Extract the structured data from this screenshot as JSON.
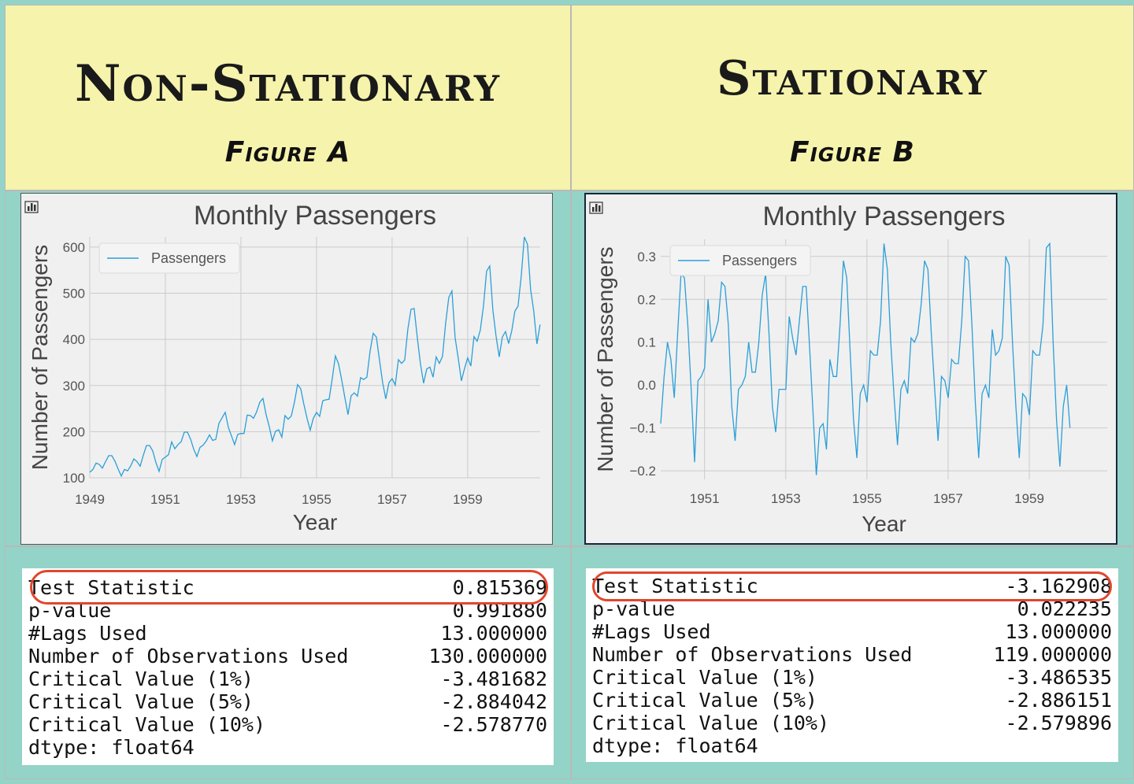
{
  "panels": [
    {
      "heading": "Non-Stationary",
      "subheading": "Figure A",
      "stats": [
        {
          "label": "Test Statistic",
          "value": "0.815369"
        },
        {
          "label": "p-value",
          "value": "0.991880"
        },
        {
          "label": "#Lags Used",
          "value": "13.000000"
        },
        {
          "label": "Number of Observations Used",
          "value": "130.000000"
        },
        {
          "label": "Critical Value (1%)",
          "value": "-3.481682"
        },
        {
          "label": "Critical Value (5%)",
          "value": "-2.884042"
        },
        {
          "label": "Critical Value (10%)",
          "value": "-2.578770"
        },
        {
          "label": "dtype: float64",
          "value": ""
        }
      ]
    },
    {
      "heading": "Stationary",
      "subheading": "Figure B",
      "stats": [
        {
          "label": "Test Statistic",
          "value": "-3.162908"
        },
        {
          "label": "p-value",
          "value": "0.022235"
        },
        {
          "label": "#Lags Used",
          "value": "13.000000"
        },
        {
          "label": "Number of Observations Used",
          "value": "119.000000"
        },
        {
          "label": "Critical Value (1%)",
          "value": "-3.486535"
        },
        {
          "label": "Critical Value (5%)",
          "value": "-2.886151"
        },
        {
          "label": "Critical Value (10%)",
          "value": "-2.579896"
        },
        {
          "label": "dtype: float64",
          "value": ""
        }
      ]
    }
  ],
  "chart_data": [
    {
      "type": "line",
      "title": "Monthly Passengers",
      "xlabel": "Year",
      "ylabel": "Number of Passengers",
      "legend": "top-left",
      "grid": true,
      "line_color": "#2a9fd8",
      "xlim": [
        1949,
        1960.92
      ],
      "ylim": [
        100,
        622
      ],
      "xticks": [
        1949,
        1951,
        1953,
        1955,
        1957,
        1959
      ],
      "yticks": [
        100,
        200,
        300,
        400,
        500,
        600
      ],
      "series": [
        {
          "name": "Passengers",
          "start": 1949,
          "values": [
            112,
            118,
            132,
            129,
            121,
            135,
            148,
            148,
            136,
            119,
            104,
            118,
            115,
            126,
            141,
            135,
            125,
            149,
            170,
            170,
            158,
            133,
            114,
            140,
            145,
            150,
            178,
            163,
            172,
            178,
            199,
            199,
            184,
            162,
            146,
            166,
            171,
            180,
            193,
            181,
            183,
            218,
            230,
            242,
            209,
            191,
            172,
            194,
            196,
            196,
            236,
            235,
            229,
            243,
            264,
            272,
            237,
            211,
            180,
            201,
            204,
            188,
            235,
            227,
            234,
            264,
            302,
            293,
            259,
            229,
            203,
            229,
            242,
            233,
            267,
            269,
            270,
            315,
            364,
            347,
            312,
            274,
            237,
            278,
            284,
            277,
            317,
            313,
            318,
            374,
            413,
            405,
            355,
            306,
            271,
            306,
            315,
            301,
            356,
            348,
            355,
            422,
            465,
            467,
            404,
            347,
            305,
            336,
            340,
            318,
            362,
            348,
            363,
            435,
            491,
            505,
            404,
            359,
            310,
            337,
            360,
            342,
            406,
            396,
            420,
            472,
            548,
            559,
            463,
            407,
            362,
            405,
            417,
            391,
            419,
            461,
            472,
            535,
            622,
            606,
            508,
            461,
            390,
            432
          ]
        }
      ]
    },
    {
      "type": "line",
      "title": "Monthly Passengers",
      "xlabel": "Year",
      "ylabel": "Number of Passengers",
      "legend": "top-left",
      "grid": true,
      "line_color": "#2a9fd8",
      "xlim": [
        1949.92,
        1960.92
      ],
      "ylim": [
        -0.22,
        0.34
      ],
      "xticks": [
        1951,
        1953,
        1955,
        1957,
        1959
      ],
      "yticks": [
        -0.2,
        -0.1,
        0.0,
        0.1,
        0.2,
        0.3
      ],
      "series": [
        {
          "name": "Passengers",
          "start": 1949.92,
          "values": [
            -0.09,
            0.02,
            0.1,
            0.06,
            -0.03,
            0.12,
            0.26,
            0.25,
            0.14,
            -0.01,
            -0.18,
            0.01,
            0.02,
            0.04,
            0.2,
            0.1,
            0.12,
            0.15,
            0.24,
            0.23,
            0.14,
            -0.05,
            -0.13,
            -0.01,
            0.0,
            0.02,
            0.1,
            0.03,
            0.03,
            0.1,
            0.21,
            0.26,
            0.12,
            -0.05,
            -0.11,
            -0.01,
            -0.01,
            -0.01,
            0.16,
            0.11,
            0.07,
            0.15,
            0.23,
            0.23,
            0.09,
            -0.06,
            -0.21,
            -0.1,
            -0.09,
            -0.15,
            0.06,
            0.02,
            0.02,
            0.14,
            0.29,
            0.25,
            0.08,
            -0.08,
            -0.17,
            -0.02,
            0.0,
            -0.04,
            0.08,
            0.07,
            0.07,
            0.15,
            0.33,
            0.27,
            0.1,
            -0.03,
            -0.14,
            -0.01,
            0.01,
            -0.02,
            0.11,
            0.1,
            0.12,
            0.19,
            0.29,
            0.27,
            0.12,
            -0.01,
            -0.13,
            0.02,
            0.01,
            -0.03,
            0.06,
            0.05,
            0.05,
            0.15,
            0.3,
            0.29,
            0.14,
            -0.04,
            -0.17,
            -0.02,
            0.0,
            -0.03,
            0.13,
            0.07,
            0.08,
            0.11,
            0.3,
            0.28,
            0.1,
            -0.05,
            -0.17,
            -0.02,
            -0.03,
            -0.07,
            0.08,
            0.07,
            0.07,
            0.14,
            0.32,
            0.33,
            0.1,
            -0.08,
            -0.19,
            -0.05,
            0.0,
            -0.1
          ]
        }
      ]
    }
  ]
}
